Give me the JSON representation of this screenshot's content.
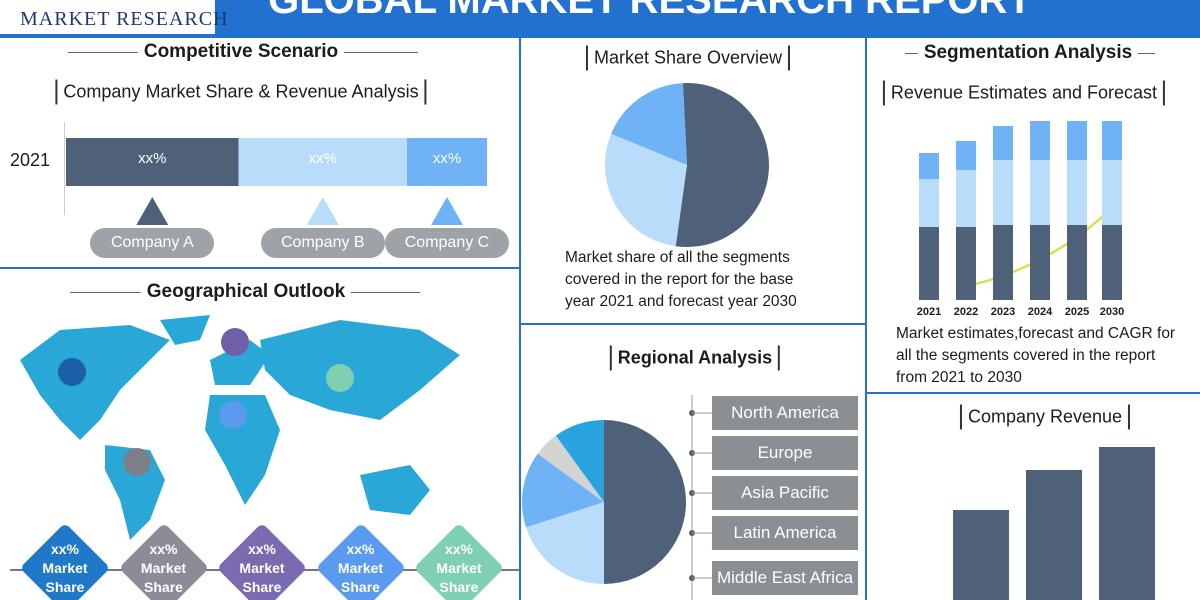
{
  "header": {
    "logo": "MARKET RESEARCH",
    "title": "GLOBAL MARKET RESEARCH REPORT"
  },
  "competitive": {
    "title": "Competitive Scenario",
    "subtitle": "Company Market Share & Revenue Analysis",
    "year": "2021",
    "segments": [
      {
        "label": "xx%",
        "company": "Company A",
        "share": 41,
        "color": "#4f6079"
      },
      {
        "label": "xx%",
        "company": "Company B",
        "share": 40,
        "color": "#b9dcfb"
      },
      {
        "label": "xx%",
        "company": "Company C",
        "share": 19,
        "color": "#6fb2f5"
      }
    ]
  },
  "geographical": {
    "title": "Geographical Outlook",
    "badges": [
      {
        "value": "xx%",
        "label": "Market Share",
        "color": "#1f78c8"
      },
      {
        "value": "xx%",
        "label": "Market Share",
        "color": "#8e8a98"
      },
      {
        "value": "xx%",
        "label": "Market Share",
        "color": "#7a6bb0"
      },
      {
        "value": "xx%",
        "label": "Market Share",
        "color": "#5a9bf0"
      },
      {
        "value": "xx%",
        "label": "Market Share",
        "color": "#7fcfb2"
      }
    ]
  },
  "market_share": {
    "title": "Market Share Overview",
    "slices": [
      {
        "value": 53,
        "color": "#4f6079"
      },
      {
        "value": 29,
        "color": "#b9dcfb"
      },
      {
        "value": 18,
        "color": "#6fb2f5"
      }
    ],
    "caption": "Market share of all the segments covered in the report for the base year 2021 and forecast year 2030"
  },
  "regional": {
    "title": "Regional Analysis",
    "regions": [
      "North America",
      "Europe",
      "Asia Pacific",
      "Latin America",
      "Middle East Africa"
    ],
    "slices": [
      {
        "value": 50,
        "color": "#4f6079"
      },
      {
        "value": 20,
        "color": "#b9dcfb"
      },
      {
        "value": 15,
        "color": "#6fb2f5"
      },
      {
        "value": 5,
        "color": "#d3d3d3"
      },
      {
        "value": 10,
        "color": "#29a3e0"
      }
    ]
  },
  "segmentation": {
    "title": "Segmentation Analysis",
    "subtitle": "Revenue Estimates and Forecast",
    "years": [
      "2021",
      "2022",
      "2023",
      "2024",
      "2025",
      "2030"
    ],
    "series": [
      {
        "color": "#4f6079",
        "values": [
          73,
          73,
          75,
          75,
          75,
          75
        ]
      },
      {
        "color": "#b9dcfb",
        "values": [
          48,
          57,
          65,
          65,
          65,
          65
        ]
      },
      {
        "color": "#6fb2f5",
        "values": [
          26,
          29,
          34,
          39,
          39,
          39
        ]
      }
    ],
    "caption": "Market estimates,forecast and CAGR for all the segments covered in the report from 2021 to 2030"
  },
  "company_revenue": {
    "title": "Company Revenue",
    "values": [
      90,
      130,
      153
    ],
    "color": "#4f6079"
  }
}
